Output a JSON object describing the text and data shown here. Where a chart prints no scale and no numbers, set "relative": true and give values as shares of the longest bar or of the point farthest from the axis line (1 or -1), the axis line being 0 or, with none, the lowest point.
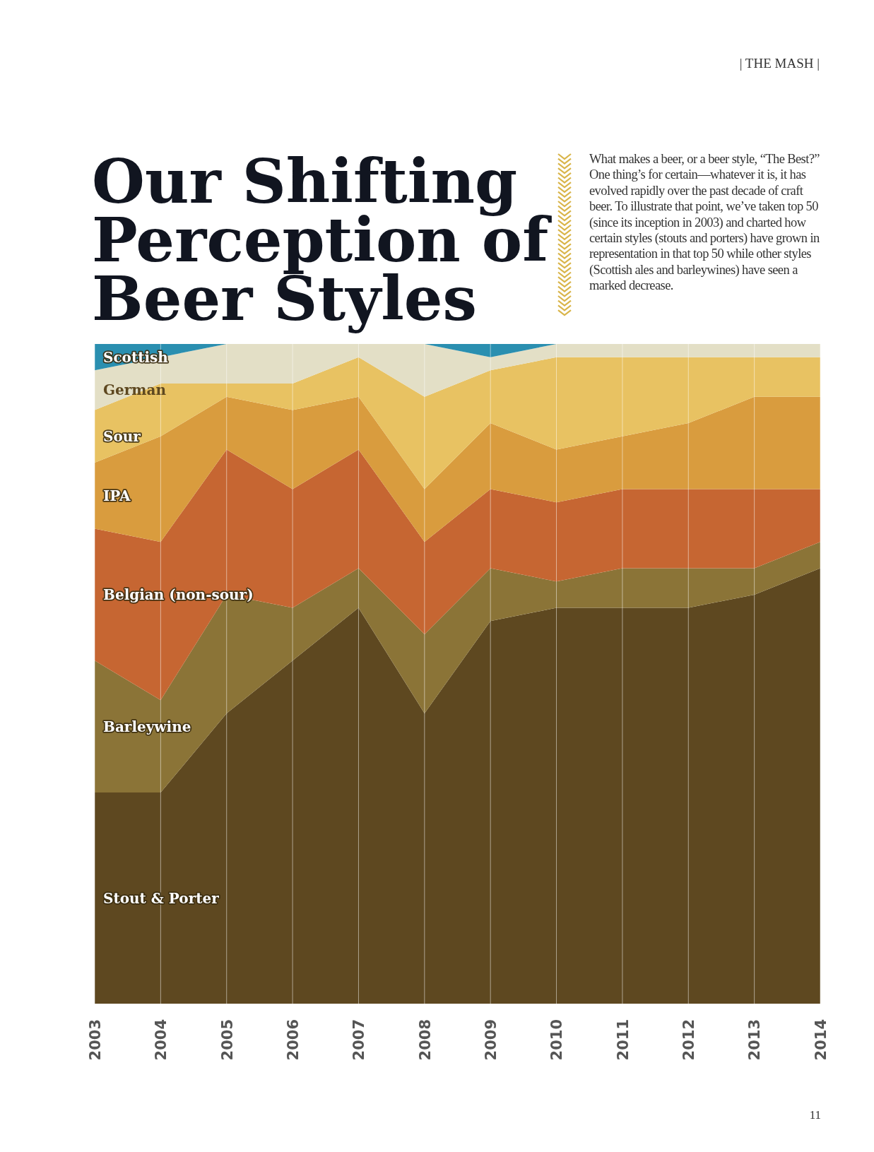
{
  "chart_data": {
    "type": "area",
    "title": "Our Shifting Perception of Beer Styles",
    "subtitle": "What makes a beer, or a beer style, “The Best?” One thing’s for certain—whatever it is, it has evolved rapidly over the past decade of craft beer. To illustrate that point, we’ve taken top 50 (since its inception in 2003) and charted how certain styles (stouts and porters) have grown in representation in that top 50 while other styles (Scottish ales and barleywines) have seen a marked decrease.",
    "annotations": [
      "| THE MASH |",
      "11"
    ],
    "categories": [
      "2003",
      "2004",
      "2005",
      "2006",
      "2007",
      "2008",
      "2009",
      "2010",
      "2011",
      "2012",
      "2013",
      "2014"
    ],
    "relative": true,
    "stacked": true,
    "grid": "x",
    "series": [
      {
        "name": "Stout & Porter",
        "color": "#5e4820",
        "values": [
          0.32,
          0.32,
          0.44,
          0.52,
          0.6,
          0.44,
          0.58,
          0.6,
          0.6,
          0.6,
          0.62,
          0.66
        ]
      },
      {
        "name": "Barleywine",
        "color": "#8b7437",
        "values": [
          0.2,
          0.14,
          0.18,
          0.08,
          0.06,
          0.12,
          0.08,
          0.04,
          0.06,
          0.06,
          0.04,
          0.04
        ]
      },
      {
        "name": "Belgian (non-sour)",
        "color": "#c66632",
        "values": [
          0.2,
          0.24,
          0.22,
          0.18,
          0.18,
          0.14,
          0.12,
          0.12,
          0.12,
          0.12,
          0.12,
          0.08
        ]
      },
      {
        "name": "IPA",
        "color": "#d99c3e",
        "values": [
          0.1,
          0.16,
          0.08,
          0.12,
          0.08,
          0.08,
          0.1,
          0.08,
          0.08,
          0.1,
          0.14,
          0.14
        ]
      },
      {
        "name": "Sour",
        "color": "#e8c262",
        "values": [
          0.08,
          0.08,
          0.02,
          0.04,
          0.06,
          0.14,
          0.08,
          0.14,
          0.12,
          0.1,
          0.06,
          0.06
        ]
      },
      {
        "name": "German",
        "color": "#e3dfc6",
        "values": [
          0.06,
          0.04,
          0.06,
          0.06,
          0.02,
          0.08,
          0.02,
          0.02,
          0.02,
          0.02,
          0.02,
          0.02
        ]
      },
      {
        "name": "Scottish",
        "color": "#2a8fb0",
        "values": [
          0.04,
          0.02,
          0,
          0,
          0,
          0,
          0.02,
          0,
          0,
          0,
          0,
          0
        ]
      }
    ]
  }
}
